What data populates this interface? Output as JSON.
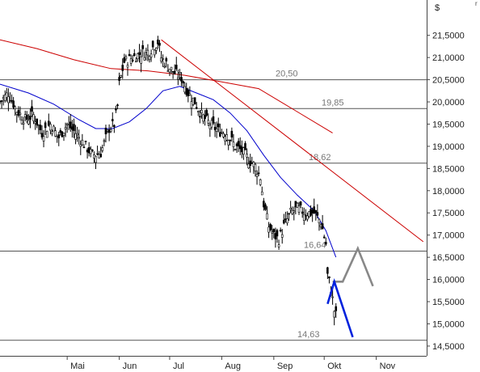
{
  "chart_data": {
    "type": "line",
    "unit": "$",
    "corner_glyph": "r",
    "y_ticks": [
      "21,5000",
      "21,0000",
      "20,5000",
      "20,0000",
      "19,5000",
      "19,0000",
      "18,5000",
      "18,0000",
      "17,5000",
      "17,0000",
      "16,5000",
      "16,0000",
      "15,5000",
      "15,0000",
      "14,5000"
    ],
    "y_tick_values": [
      21.5,
      21.0,
      20.5,
      20.0,
      19.5,
      19.0,
      18.5,
      18.0,
      17.5,
      17.0,
      16.5,
      16.0,
      15.5,
      15.0,
      14.5
    ],
    "ylim": [
      14.28,
      22.15
    ],
    "x_ticks": [
      "Mai",
      "Jun",
      "Jul",
      "Aug",
      "Sep",
      "Okt",
      "Nov"
    ],
    "x_tick_days": [
      18,
      49,
      79,
      110,
      141,
      171,
      202
    ],
    "xlim": [
      -22,
      232
    ],
    "grid": false,
    "levels": [
      {
        "value": 20.5,
        "label": "20,50"
      },
      {
        "value": 19.85,
        "label": "19,85"
      },
      {
        "value": 18.62,
        "label": "18,62"
      },
      {
        "value": 16.64,
        "label": "16,64"
      },
      {
        "value": 14.63,
        "label": "14,63"
      }
    ],
    "price_anchors": [
      [
        -22,
        20.0
      ],
      [
        -17,
        20.2
      ],
      [
        -12,
        19.8
      ],
      [
        -7,
        19.6
      ],
      [
        -2,
        19.7
      ],
      [
        3,
        19.3
      ],
      [
        8,
        19.5
      ],
      [
        13,
        19.2
      ],
      [
        18,
        19.5
      ],
      [
        23,
        19.3
      ],
      [
        28,
        19.05
      ],
      [
        33,
        18.8
      ],
      [
        38,
        18.85
      ],
      [
        43,
        19.4
      ],
      [
        46,
        19.5
      ],
      [
        48,
        19.9
      ],
      [
        49,
        20.4
      ],
      [
        52,
        20.9
      ],
      [
        57,
        21.0
      ],
      [
        62,
        21.1
      ],
      [
        67,
        21.15
      ],
      [
        72,
        21.35
      ],
      [
        74,
        21.0
      ],
      [
        78,
        20.8
      ],
      [
        82,
        20.65
      ],
      [
        86,
        20.55
      ],
      [
        90,
        20.2
      ],
      [
        94,
        20.0
      ],
      [
        98,
        19.7
      ],
      [
        103,
        19.5
      ],
      [
        108,
        19.35
      ],
      [
        113,
        19.3
      ],
      [
        118,
        19.0
      ],
      [
        122,
        18.9
      ],
      [
        126,
        18.7
      ],
      [
        130,
        18.55
      ],
      [
        133,
        18.3
      ],
      [
        135,
        17.7
      ],
      [
        138,
        17.2
      ],
      [
        141,
        17.0
      ],
      [
        144,
        16.9
      ],
      [
        147,
        17.2
      ],
      [
        151,
        17.5
      ],
      [
        155,
        17.6
      ],
      [
        160,
        17.5
      ],
      [
        165,
        17.5
      ],
      [
        169,
        17.3
      ],
      [
        172,
        16.8
      ],
      [
        173,
        16.1
      ],
      [
        175,
        15.8
      ],
      [
        177,
        15.3
      ],
      [
        178,
        15.2
      ]
    ],
    "series": [
      {
        "name": "",
        "kind": "ma",
        "color": "#cc0000",
        "points": [
          [
            -22,
            21.4
          ],
          [
            0,
            21.2
          ],
          [
            22,
            20.95
          ],
          [
            44,
            20.75
          ],
          [
            66,
            20.7
          ],
          [
            88,
            20.6
          ],
          [
            110,
            20.45
          ],
          [
            132,
            20.3
          ],
          [
            154,
            19.8
          ],
          [
            176,
            19.3
          ]
        ]
      },
      {
        "name": "",
        "kind": "ma",
        "color": "#0000cc",
        "points": [
          [
            -22,
            20.4
          ],
          [
            -5,
            20.2
          ],
          [
            10,
            19.95
          ],
          [
            25,
            19.6
          ],
          [
            35,
            19.4
          ],
          [
            45,
            19.4
          ],
          [
            55,
            19.55
          ],
          [
            65,
            19.85
          ],
          [
            75,
            20.25
          ],
          [
            85,
            20.35
          ],
          [
            95,
            20.2
          ],
          [
            105,
            20.05
          ],
          [
            115,
            19.75
          ],
          [
            125,
            19.35
          ],
          [
            135,
            18.8
          ],
          [
            145,
            18.3
          ],
          [
            155,
            17.9
          ],
          [
            165,
            17.55
          ],
          [
            172,
            17.1
          ],
          [
            178,
            16.5
          ]
        ]
      },
      {
        "name": "",
        "kind": "trendline",
        "color": "#cc0000",
        "points": [
          [
            74,
            21.4
          ],
          [
            230,
            16.85
          ]
        ]
      },
      {
        "name": "",
        "kind": "projection",
        "color": "#888888",
        "points": [
          [
            176,
            15.95
          ],
          [
            182,
            15.95
          ],
          [
            191,
            16.7
          ],
          [
            200,
            15.85
          ]
        ]
      },
      {
        "name": "",
        "kind": "projection",
        "color": "#0022dd",
        "points": [
          [
            173,
            15.45
          ],
          [
            177,
            15.95
          ],
          [
            188,
            14.7
          ]
        ]
      }
    ]
  }
}
